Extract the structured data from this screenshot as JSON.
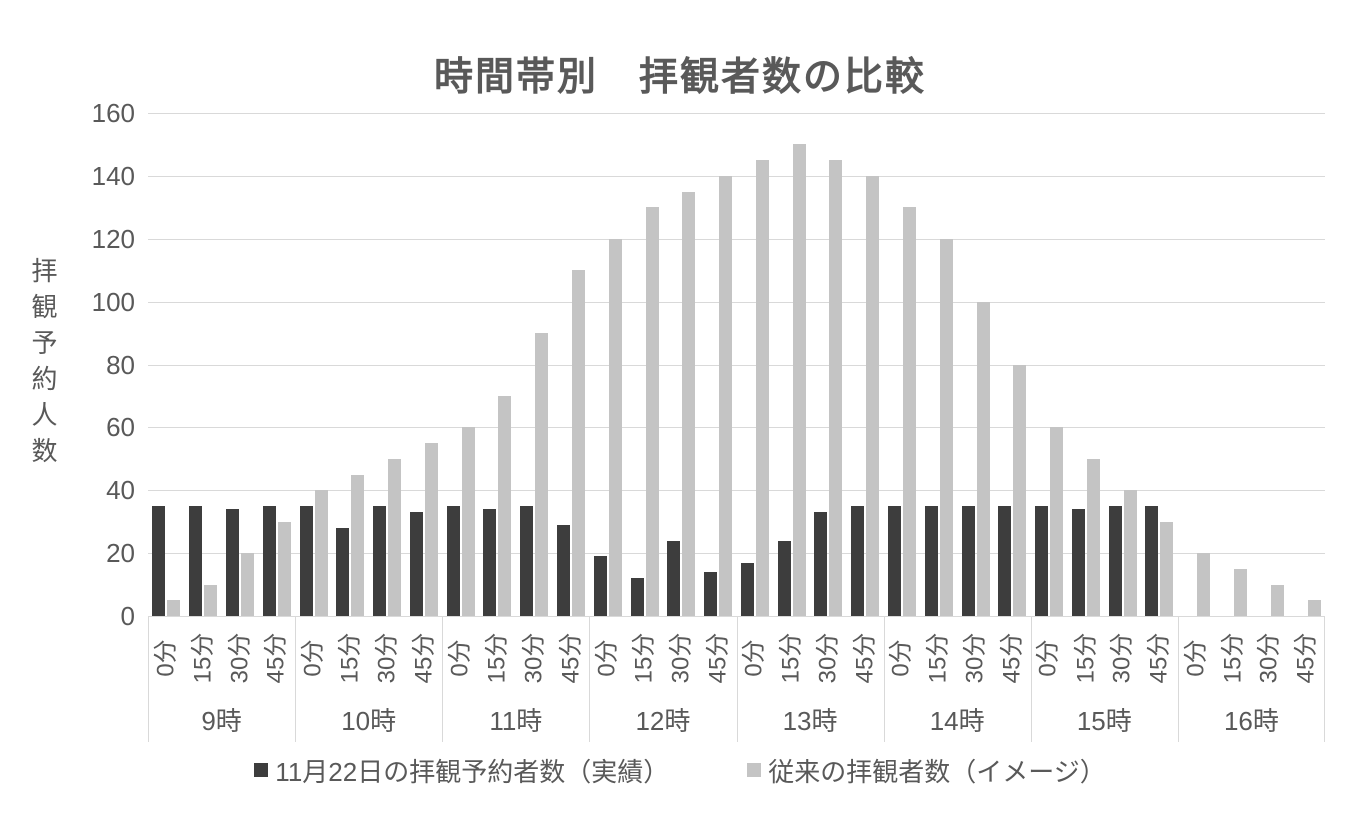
{
  "chart_data": {
    "type": "bar",
    "title": "時間帯別　拝観者数の比較",
    "ylabel": "拝観予約人数",
    "xlabel": "",
    "ylim": [
      0,
      160
    ],
    "yticks": [
      0,
      20,
      40,
      60,
      80,
      100,
      120,
      140,
      160
    ],
    "grid": true,
    "legend_position": "bottom",
    "grid_color": "#d9d9d9",
    "text_color": "#595959",
    "hour_groups": [
      "9時",
      "10時",
      "11時",
      "12時",
      "13時",
      "14時",
      "15時",
      "16時"
    ],
    "minute_labels": [
      "0分",
      "15分",
      "30分",
      "45分"
    ],
    "series": [
      {
        "name": "11月22日の拝観予約者数（実績）",
        "color": "#3d3d3d",
        "values": [
          35,
          35,
          34,
          35,
          35,
          28,
          35,
          33,
          35,
          34,
          35,
          29,
          19,
          12,
          24,
          14,
          17,
          24,
          33,
          35,
          35,
          35,
          35,
          35,
          35,
          34,
          35,
          35,
          0,
          0,
          0,
          0
        ]
      },
      {
        "name": "従来の拝観者数（イメージ）",
        "color": "#c4c4c4",
        "values": [
          5,
          10,
          20,
          30,
          40,
          45,
          50,
          55,
          60,
          70,
          90,
          110,
          120,
          130,
          135,
          140,
          145,
          150,
          145,
          140,
          130,
          120,
          100,
          80,
          60,
          50,
          40,
          30,
          20,
          15,
          10,
          5
        ]
      }
    ]
  }
}
